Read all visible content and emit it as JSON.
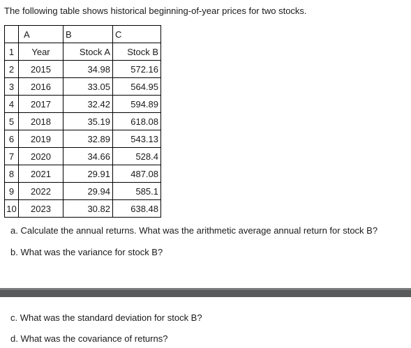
{
  "intro": "The following table shows historical beginning-of-year prices for two stocks.",
  "table": {
    "columns": [
      "A",
      "B",
      "C"
    ],
    "rows": [
      {
        "n": "1",
        "a": "Year",
        "b": "Stock A",
        "c": "Stock B"
      },
      {
        "n": "2",
        "a": "2015",
        "b": "34.98",
        "c": "572.16"
      },
      {
        "n": "3",
        "a": "2016",
        "b": "33.05",
        "c": "564.95"
      },
      {
        "n": "4",
        "a": "2017",
        "b": "32.42",
        "c": "594.89"
      },
      {
        "n": "5",
        "a": "2018",
        "b": "35.19",
        "c": "618.08"
      },
      {
        "n": "6",
        "a": "2019",
        "b": "32.89",
        "c": "543.13"
      },
      {
        "n": "7",
        "a": "2020",
        "b": "34.66",
        "c": "528.4"
      },
      {
        "n": "8",
        "a": "2021",
        "b": "29.91",
        "c": "487.08"
      },
      {
        "n": "9",
        "a": "2022",
        "b": "29.94",
        "c": "585.1"
      },
      {
        "n": "10",
        "a": "2023",
        "b": "30.82",
        "c": "638.48"
      }
    ]
  },
  "questions": {
    "a": "a. Calculate the annual returns. What was the arithmetic average annual return for stock B?",
    "b": "b. What was the variance for stock B?",
    "c": "c. What was the standard deviation for stock B?",
    "d": "d. What was the covariance of returns?"
  }
}
